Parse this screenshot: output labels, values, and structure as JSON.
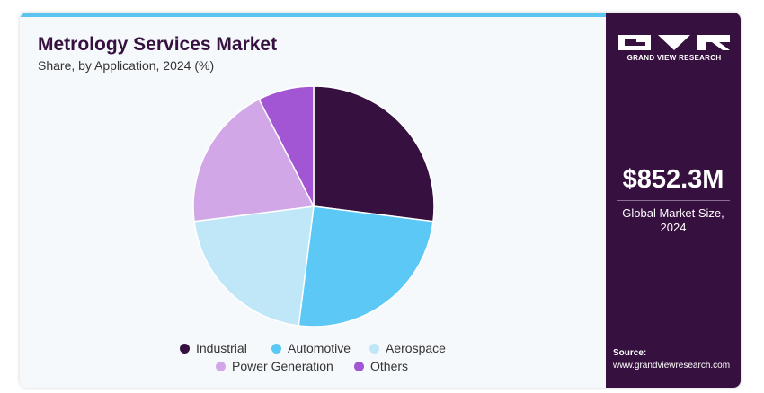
{
  "brand": {
    "name": "GRAND VIEW RESEARCH",
    "logo_icon": "gvr-logo-icon"
  },
  "sidebar": {
    "market_value": "$852.3M",
    "market_label_line1": "Global Market Size,",
    "market_label_line2": "2024",
    "source_label": "Source:",
    "source_url": "www.grandviewresearch.com"
  },
  "colors": {
    "accent": "#5bc4ef",
    "sidebar_bg": "#36103f",
    "title": "#36103f"
  },
  "chart_data": {
    "type": "pie",
    "title": "Metrology Services Market",
    "subtitle": "Share, by Application, 2024 (%)",
    "legend_position": "bottom",
    "slices": [
      {
        "name": "Industrial",
        "value": 27,
        "color": "#36103f"
      },
      {
        "name": "Automotive",
        "value": 25,
        "color": "#5bc8f5"
      },
      {
        "name": "Aerospace",
        "value": 21,
        "color": "#bfe7f8"
      },
      {
        "name": "Power Generation",
        "value": 19.5,
        "color": "#d1a7e8"
      },
      {
        "name": "Others",
        "value": 7.5,
        "color": "#a356d4"
      }
    ]
  }
}
